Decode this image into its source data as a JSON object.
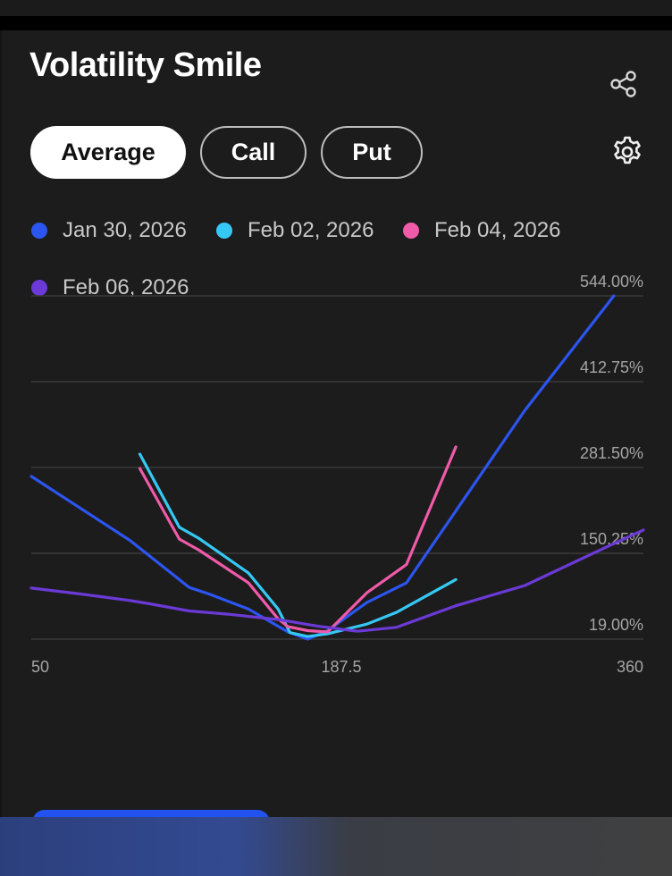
{
  "header": {
    "title": "Volatility Smile"
  },
  "tabs": [
    {
      "label": "Average",
      "active": true
    },
    {
      "label": "Call",
      "active": false
    },
    {
      "label": "Put",
      "active": false
    }
  ],
  "icons": {
    "share": "share-icon",
    "settings": "gear-icon"
  },
  "colors": {
    "background": "#1c1c1c",
    "series": [
      "#2c55f0",
      "#36c8f4",
      "#ef5aa9",
      "#6b3ad6"
    ]
  },
  "chart_data": {
    "type": "line",
    "title": "",
    "xlabel": "",
    "ylabel": "",
    "xlim": [
      50,
      360
    ],
    "ylim": [
      19,
      544
    ],
    "x_ticks": [
      "50",
      "187.5",
      "360"
    ],
    "y_ticks": [
      "544.00%",
      "412.75%",
      "281.50%",
      "150.25%",
      "19.00%"
    ],
    "grid": true,
    "legend_position": "top-left",
    "series": [
      {
        "name": "Jan 30, 2026",
        "color": "#2c55f0",
        "points": [
          [
            50,
            268
          ],
          [
            75,
            219
          ],
          [
            100,
            170
          ],
          [
            130,
            98
          ],
          [
            140,
            88
          ],
          [
            160,
            65
          ],
          [
            180,
            30
          ],
          [
            190,
            19
          ],
          [
            200,
            32
          ],
          [
            220,
            75
          ],
          [
            240,
            105
          ],
          [
            300,
            369
          ],
          [
            345,
            544
          ]
        ]
      },
      {
        "name": "Feb 02, 2026",
        "color": "#36c8f4",
        "points": [
          [
            105,
            302
          ],
          [
            125,
            190
          ],
          [
            135,
            173
          ],
          [
            160,
            120
          ],
          [
            175,
            65
          ],
          [
            181,
            29
          ],
          [
            190,
            23
          ],
          [
            200,
            27
          ],
          [
            220,
            42
          ],
          [
            235,
            60
          ],
          [
            265,
            110
          ]
        ]
      },
      {
        "name": "Feb 04, 2026",
        "color": "#ef5aa9",
        "points": [
          [
            105,
            280
          ],
          [
            125,
            172
          ],
          [
            135,
            155
          ],
          [
            160,
            105
          ],
          [
            175,
            50
          ],
          [
            180,
            38
          ],
          [
            190,
            32
          ],
          [
            200,
            30
          ],
          [
            220,
            90
          ],
          [
            240,
            133
          ],
          [
            265,
            313
          ]
        ]
      },
      {
        "name": "Feb 06, 2026",
        "color": "#6b3ad6",
        "points": [
          [
            50,
            97
          ],
          [
            75,
            88
          ],
          [
            100,
            78
          ],
          [
            110,
            73
          ],
          [
            130,
            62
          ],
          [
            150,
            57
          ],
          [
            175,
            49
          ],
          [
            195,
            39
          ],
          [
            215,
            31
          ],
          [
            235,
            37
          ],
          [
            265,
            70
          ],
          [
            300,
            101
          ],
          [
            340,
            158
          ],
          [
            360,
            186
          ]
        ]
      }
    ]
  }
}
